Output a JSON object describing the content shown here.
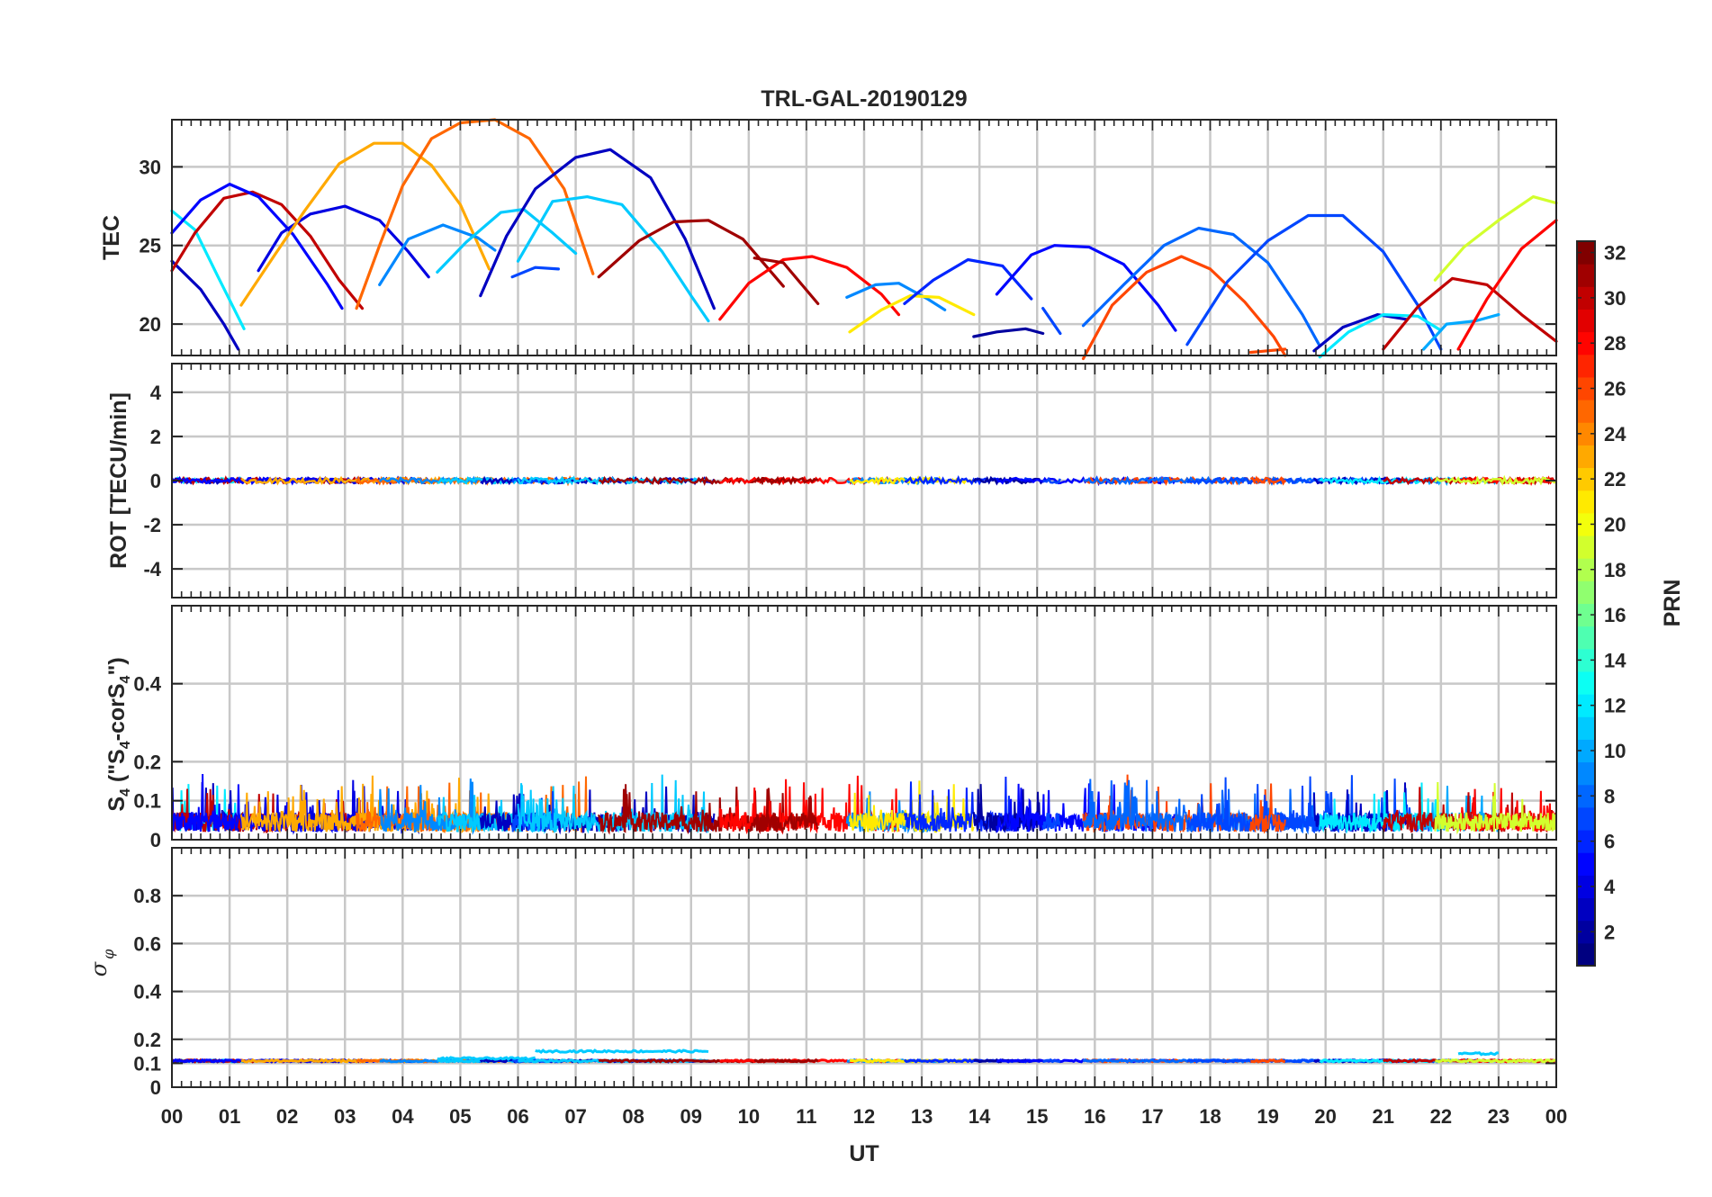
{
  "chart_data": {
    "type": "line",
    "title": "TRL-GAL-20190129",
    "xlabel": "UT",
    "x_unit": "hours",
    "xlim": [
      0,
      24
    ],
    "x_tick_labels": [
      "00",
      "01",
      "02",
      "03",
      "04",
      "05",
      "06",
      "07",
      "08",
      "09",
      "10",
      "11",
      "12",
      "13",
      "14",
      "15",
      "16",
      "17",
      "18",
      "19",
      "20",
      "21",
      "22",
      "23",
      "00"
    ],
    "colorbar": {
      "label": "PRN",
      "range": [
        1,
        32
      ],
      "tick_labels": [
        "2",
        "4",
        "6",
        "8",
        "10",
        "12",
        "14",
        "16",
        "18",
        "20",
        "22",
        "24",
        "26",
        "28",
        "30",
        "32"
      ]
    },
    "panels": [
      {
        "id": "tec",
        "ylabel": "TEC",
        "ylim": [
          18,
          33
        ],
        "y_tick_labels": [
          "20",
          "25",
          "30"
        ],
        "series": [
          {
            "prn": 12,
            "points": [
              [
                0,
                27.2
              ],
              [
                0.4,
                26.0
              ],
              [
                0.8,
                23.0
              ],
              [
                1.25,
                19.7
              ]
            ]
          },
          {
            "prn": 3,
            "points": [
              [
                0,
                24.0
              ],
              [
                0.5,
                22.2
              ],
              [
                0.9,
                20.0
              ],
              [
                1.15,
                18.4
              ]
            ]
          },
          {
            "prn": 30,
            "points": [
              [
                0,
                23.4
              ],
              [
                0.4,
                25.8
              ],
              [
                0.9,
                28.0
              ],
              [
                1.4,
                28.4
              ],
              [
                1.9,
                27.6
              ],
              [
                2.4,
                25.6
              ],
              [
                2.9,
                22.8
              ],
              [
                3.3,
                21.0
              ]
            ]
          },
          {
            "prn": 5,
            "points": [
              [
                0,
                25.8
              ],
              [
                0.5,
                27.9
              ],
              [
                1.0,
                28.9
              ],
              [
                1.5,
                28.1
              ],
              [
                2.1,
                25.7
              ],
              [
                2.7,
                22.5
              ],
              [
                2.95,
                21.0
              ]
            ]
          },
          {
            "prn": 4,
            "points": [
              [
                1.5,
                23.4
              ],
              [
                1.9,
                25.8
              ],
              [
                2.4,
                27.0
              ],
              [
                3.0,
                27.5
              ],
              [
                3.6,
                26.6
              ],
              [
                4.1,
                24.6
              ],
              [
                4.45,
                23.0
              ]
            ]
          },
          {
            "prn": 23,
            "points": [
              [
                1.2,
                21.2
              ],
              [
                1.8,
                24.5
              ],
              [
                2.3,
                27.2
              ],
              [
                2.9,
                30.2
              ],
              [
                3.5,
                31.5
              ],
              [
                4.0,
                31.5
              ],
              [
                4.5,
                30.1
              ],
              [
                5.0,
                27.6
              ],
              [
                5.5,
                23.5
              ]
            ]
          },
          {
            "prn": 25,
            "points": [
              [
                3.2,
                21.0
              ],
              [
                3.6,
                25.0
              ],
              [
                4.0,
                28.8
              ],
              [
                4.5,
                31.8
              ],
              [
                5.0,
                32.8
              ],
              [
                5.6,
                33.0
              ],
              [
                6.2,
                31.8
              ],
              [
                6.8,
                28.6
              ],
              [
                7.3,
                23.2
              ]
            ]
          },
          {
            "prn": 9,
            "points": [
              [
                3.6,
                22.5
              ],
              [
                4.1,
                25.4
              ],
              [
                4.7,
                26.3
              ],
              [
                5.3,
                25.5
              ],
              [
                5.6,
                24.7
              ]
            ]
          },
          {
            "prn": 11,
            "points": [
              [
                4.6,
                23.3
              ],
              [
                5.1,
                25.2
              ],
              [
                5.7,
                27.1
              ],
              [
                6.1,
                27.3
              ],
              [
                6.6,
                25.8
              ],
              [
                7.0,
                24.5
              ]
            ]
          },
          {
            "prn": 3,
            "points": [
              [
                5.35,
                21.8
              ],
              [
                5.8,
                25.6
              ],
              [
                6.3,
                28.6
              ],
              [
                7.0,
                30.6
              ],
              [
                7.6,
                31.1
              ],
              [
                8.3,
                29.3
              ],
              [
                8.9,
                25.4
              ],
              [
                9.4,
                21.0
              ]
            ]
          },
          {
            "prn": 7,
            "points": [
              [
                5.9,
                23.0
              ],
              [
                6.3,
                23.6
              ],
              [
                6.7,
                23.5
              ]
            ]
          },
          {
            "prn": 11,
            "points": [
              [
                6.0,
                24.0
              ],
              [
                6.6,
                27.8
              ],
              [
                7.2,
                28.1
              ],
              [
                7.8,
                27.6
              ],
              [
                8.5,
                24.6
              ],
              [
                9.0,
                21.8
              ],
              [
                9.3,
                20.2
              ]
            ]
          },
          {
            "prn": 31,
            "points": [
              [
                7.4,
                23.0
              ],
              [
                8.1,
                25.3
              ],
              [
                8.7,
                26.5
              ],
              [
                9.3,
                26.6
              ],
              [
                9.9,
                25.4
              ],
              [
                10.6,
                22.4
              ]
            ]
          },
          {
            "prn": 28,
            "points": [
              [
                9.5,
                20.3
              ],
              [
                10.0,
                22.6
              ],
              [
                10.6,
                24.1
              ],
              [
                11.1,
                24.3
              ],
              [
                11.7,
                23.6
              ],
              [
                12.3,
                21.9
              ],
              [
                12.6,
                20.6
              ]
            ]
          },
          {
            "prn": 31,
            "points": [
              [
                10.1,
                24.2
              ],
              [
                10.6,
                23.9
              ],
              [
                11.2,
                21.3
              ]
            ]
          },
          {
            "prn": 9,
            "points": [
              [
                11.7,
                21.7
              ],
              [
                12.2,
                22.5
              ],
              [
                12.6,
                22.6
              ],
              [
                13.1,
                21.6
              ],
              [
                13.4,
                20.9
              ]
            ]
          },
          {
            "prn": 21,
            "points": [
              [
                11.75,
                19.5
              ],
              [
                12.3,
                20.9
              ],
              [
                12.8,
                21.8
              ],
              [
                13.3,
                21.7
              ],
              [
                13.9,
                20.6
              ]
            ]
          },
          {
            "prn": 6,
            "points": [
              [
                12.7,
                21.3
              ],
              [
                13.2,
                22.8
              ],
              [
                13.8,
                24.1
              ],
              [
                14.4,
                23.7
              ],
              [
                14.9,
                21.6
              ]
            ]
          },
          {
            "prn": 2,
            "points": [
              [
                13.9,
                19.2
              ],
              [
                14.3,
                19.5
              ],
              [
                14.8,
                19.7
              ],
              [
                15.1,
                19.4
              ]
            ]
          },
          {
            "prn": 5,
            "points": [
              [
                14.3,
                21.9
              ],
              [
                14.9,
                24.4
              ],
              [
                15.3,
                25.0
              ],
              [
                15.9,
                24.9
              ],
              [
                16.5,
                23.8
              ],
              [
                17.1,
                21.2
              ],
              [
                17.4,
                19.6
              ]
            ]
          },
          {
            "prn": 7,
            "points": [
              [
                15.4,
                19.4
              ],
              [
                15.1,
                21.0
              ]
            ]
          },
          {
            "prn": 26,
            "points": [
              [
                15.8,
                17.8
              ],
              [
                16.3,
                21.2
              ],
              [
                16.9,
                23.3
              ],
              [
                17.5,
                24.3
              ],
              [
                18.0,
                23.5
              ],
              [
                18.6,
                21.4
              ],
              [
                19.1,
                19.2
              ],
              [
                19.3,
                18.0
              ]
            ]
          },
          {
            "prn": 8,
            "points": [
              [
                15.8,
                19.9
              ],
              [
                16.5,
                22.5
              ],
              [
                17.2,
                25.0
              ],
              [
                17.8,
                26.1
              ],
              [
                18.4,
                25.7
              ],
              [
                19.0,
                23.9
              ],
              [
                19.6,
                20.6
              ],
              [
                19.9,
                18.6
              ]
            ]
          },
          {
            "prn": 7,
            "points": [
              [
                17.6,
                18.7
              ],
              [
                18.3,
                22.7
              ],
              [
                19.0,
                25.3
              ],
              [
                19.7,
                26.9
              ],
              [
                20.3,
                26.9
              ],
              [
                21.0,
                24.6
              ],
              [
                21.6,
                21.2
              ],
              [
                22.0,
                18.4
              ]
            ]
          },
          {
            "prn": 26,
            "points": [
              [
                18.7,
                18.2
              ],
              [
                19.3,
                18.4
              ]
            ]
          },
          {
            "prn": 3,
            "points": [
              [
                19.8,
                18.3
              ],
              [
                20.3,
                19.8
              ],
              [
                20.9,
                20.6
              ],
              [
                21.4,
                20.3
              ]
            ]
          },
          {
            "prn": 12,
            "points": [
              [
                19.9,
                17.9
              ],
              [
                20.4,
                19.5
              ],
              [
                21.0,
                20.6
              ],
              [
                21.6,
                20.5
              ],
              [
                22.0,
                19.6
              ]
            ]
          },
          {
            "prn": 10,
            "points": [
              [
                21.7,
                18.4
              ],
              [
                22.1,
                20.0
              ],
              [
                22.6,
                20.2
              ],
              [
                23.0,
                20.6
              ]
            ]
          },
          {
            "prn": 30,
            "points": [
              [
                21.0,
                18.4
              ],
              [
                21.6,
                21.1
              ],
              [
                22.2,
                22.9
              ],
              [
                22.8,
                22.5
              ],
              [
                23.4,
                20.6
              ],
              [
                24.0,
                18.9
              ]
            ]
          },
          {
            "prn": 28,
            "points": [
              [
                22.3,
                18.4
              ],
              [
                22.8,
                21.6
              ],
              [
                23.4,
                24.8
              ],
              [
                24.0,
                26.6
              ]
            ]
          },
          {
            "prn": 19,
            "points": [
              [
                21.9,
                22.8
              ],
              [
                22.4,
                24.9
              ],
              [
                23.0,
                26.6
              ],
              [
                23.6,
                28.1
              ],
              [
                24.0,
                27.7
              ]
            ]
          }
        ]
      },
      {
        "id": "rot",
        "ylabel": "ROT [TECU/min]",
        "ylim": [
          -5.3,
          5.3
        ],
        "y_tick_labels": [
          "-4",
          "-2",
          "0",
          "2",
          "4"
        ],
        "noise_amplitude": 0.12
      },
      {
        "id": "s4",
        "ylabel": "S4 (\"S4-corS4\")",
        "ylim": [
          0,
          0.6
        ],
        "y_tick_labels": [
          "0",
          "0.1",
          "0.2",
          "0.4"
        ],
        "typical_range": [
          0.02,
          0.16
        ]
      },
      {
        "id": "sigma",
        "ylabel": "σφ",
        "ylim": [
          0,
          1.0
        ],
        "y_tick_labels": [
          "0",
          "0.1",
          "0.2",
          "0.4",
          "0.6",
          "0.8"
        ],
        "baseline": 0.11,
        "elevated_segments": [
          {
            "prn": 11,
            "from": 4.6,
            "to": 6.3,
            "level": 0.12
          },
          {
            "prn": 11,
            "from": 6.3,
            "to": 9.3,
            "level": 0.15
          },
          {
            "prn": 11,
            "from": 22.3,
            "to": 23.0,
            "level": 0.14
          }
        ]
      }
    ]
  }
}
